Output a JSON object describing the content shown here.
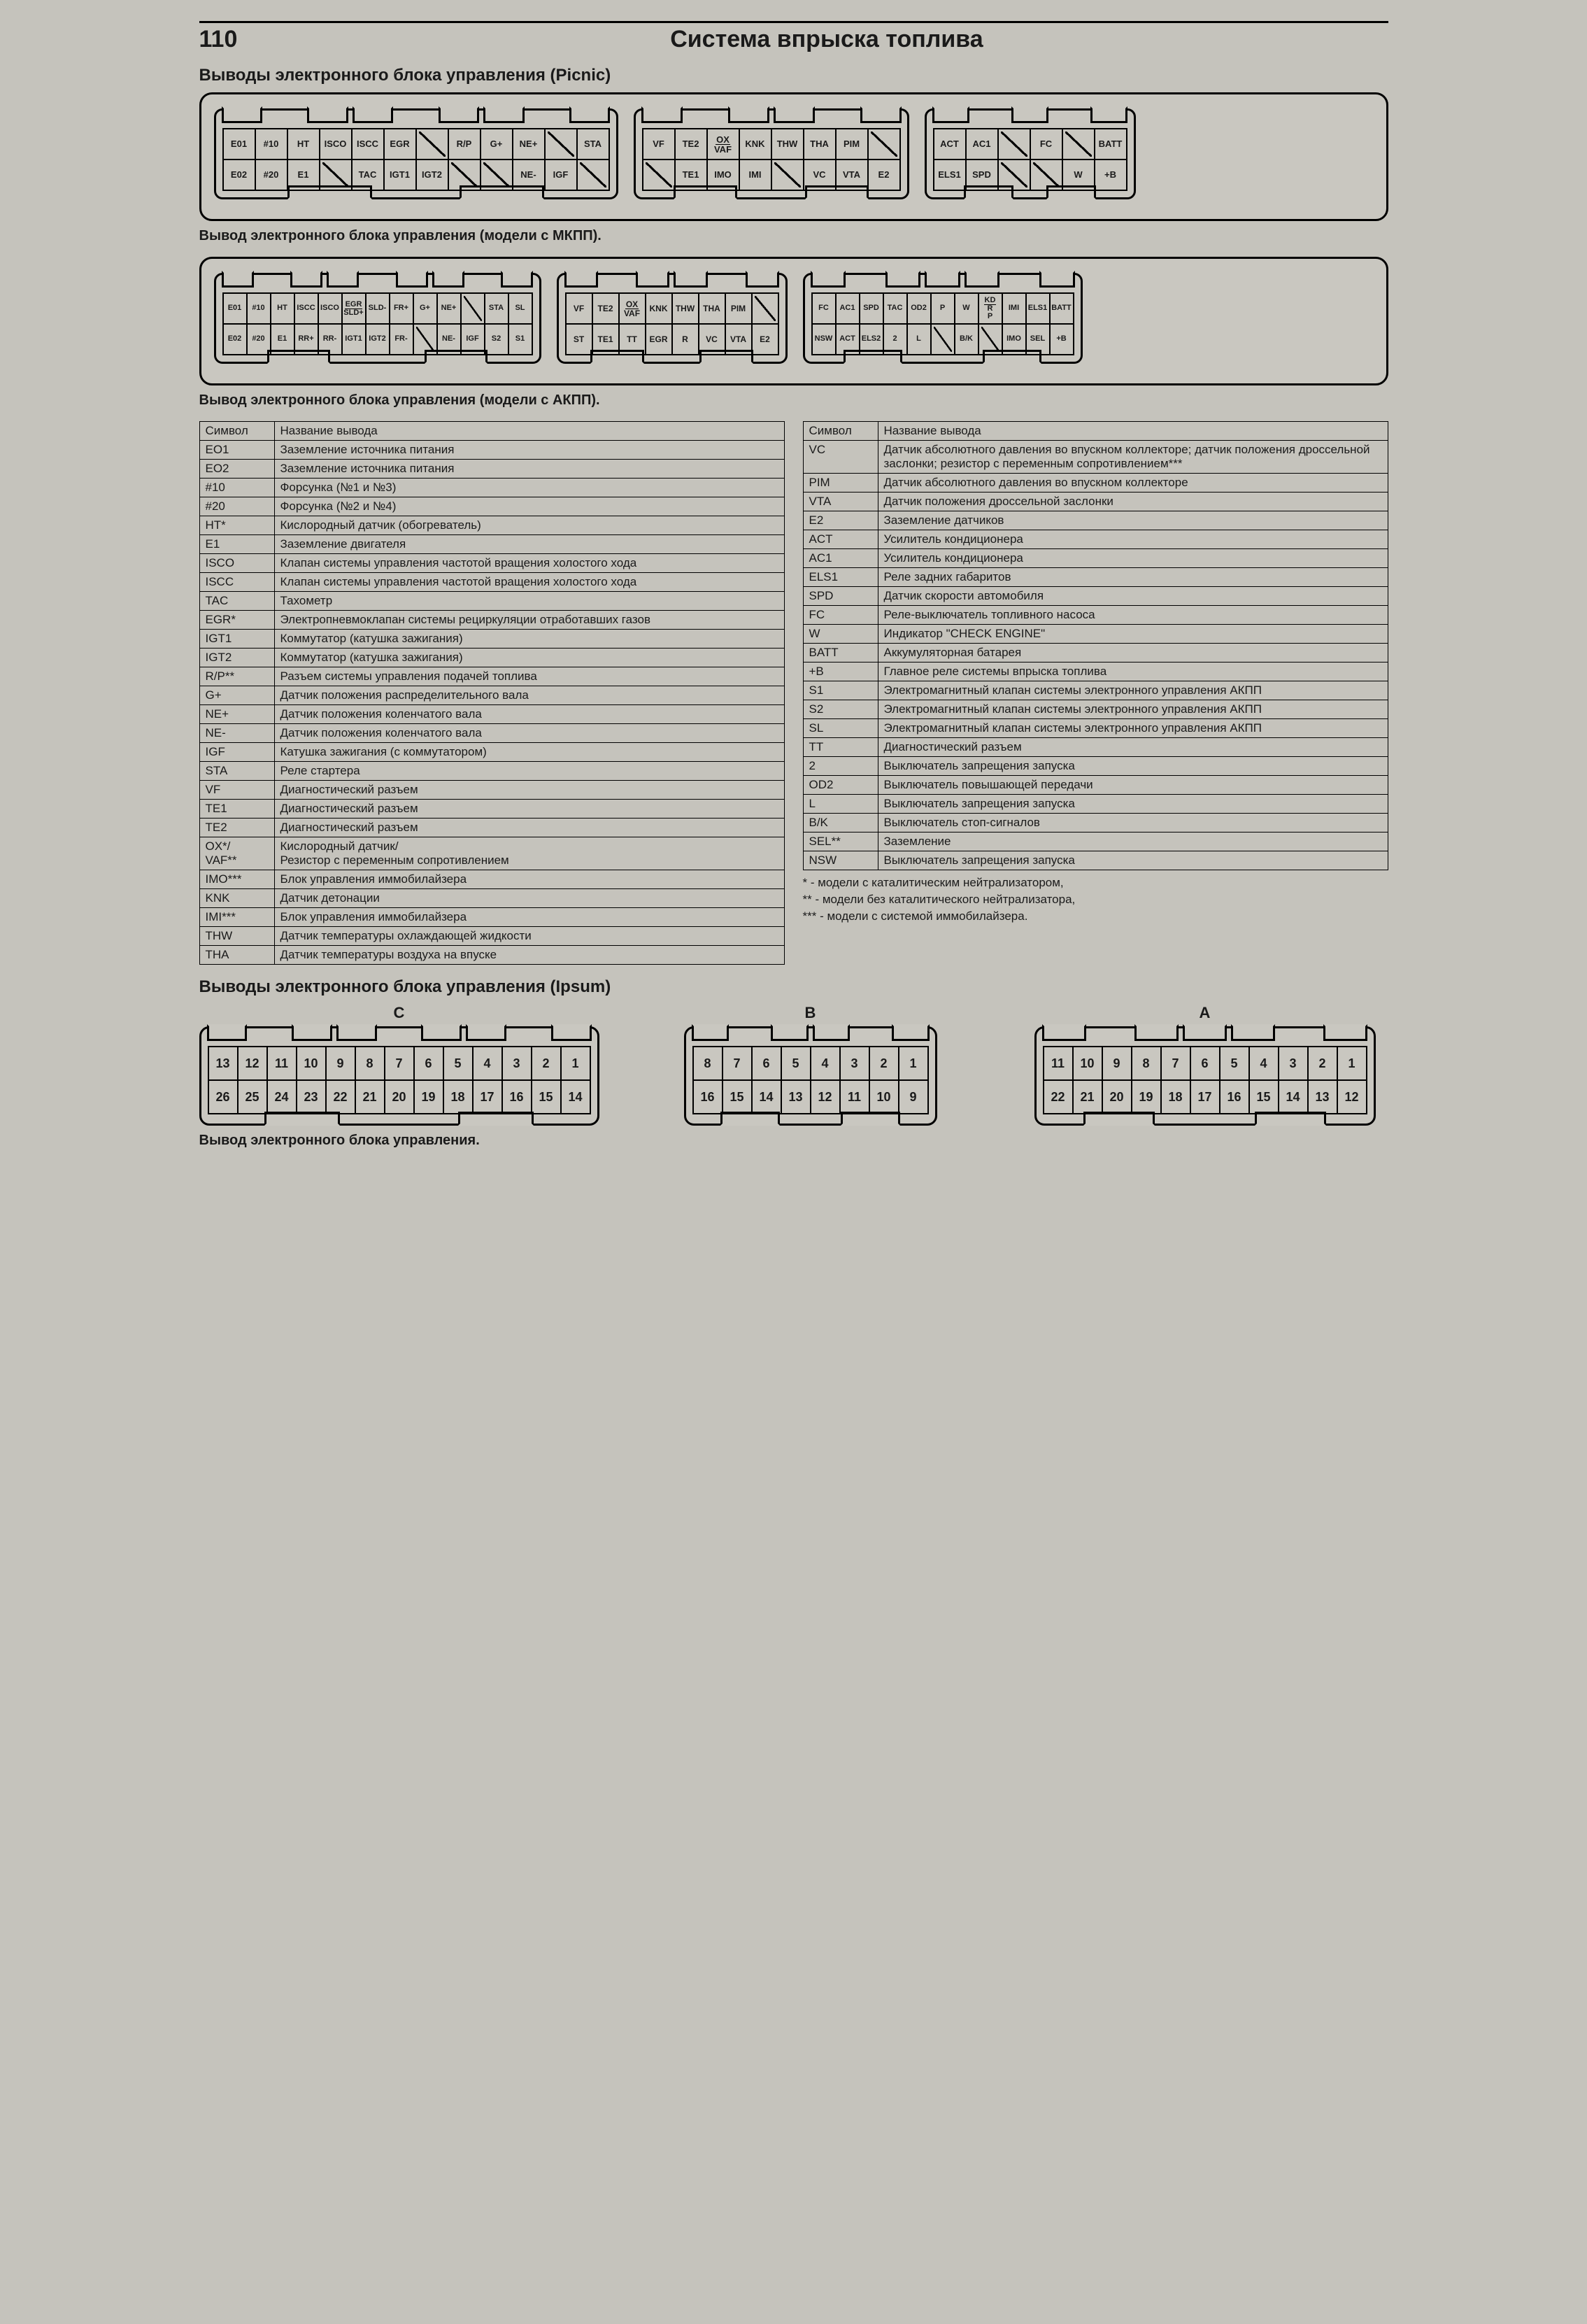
{
  "page_number": "110",
  "main_title": "Система впрыска топлива",
  "section_picnic": "Выводы электронного блока управления (Picnic)",
  "caption_mkpp": "Вывод электронного блока управления (модели с МКПП).",
  "caption_akpp": "Вывод электронного блока управления (модели с АКПП).",
  "section_ipsum": "Выводы электронного блока управления (Ipsum)",
  "caption_ipsum": "Вывод электронного блока управления.",
  "mkpp": {
    "block_a": {
      "row1": [
        "E01",
        "#10",
        "HT",
        "ISCO",
        "ISCC",
        "EGR",
        "",
        "R/P",
        "G+",
        "NE+",
        "",
        "STA"
      ],
      "row2": [
        "E02",
        "#20",
        "E1",
        "",
        "TAC",
        "IGT1",
        "IGT2",
        "",
        "",
        "NE-",
        "IGF",
        ""
      ]
    },
    "block_b": {
      "row1": [
        "VF",
        "TE2",
        "OX/VAF",
        "KNK",
        "THW",
        "THA",
        "PIM",
        ""
      ],
      "row2": [
        "",
        "TE1",
        "IMO",
        "IMI",
        "",
        "VC",
        "VTA",
        "E2"
      ]
    },
    "block_c": {
      "row1": [
        "ACT",
        "AC1",
        "",
        "FC",
        "",
        "BATT"
      ],
      "row2": [
        "ELS1",
        "SPD",
        "",
        "",
        "W",
        "+B"
      ]
    }
  },
  "akpp": {
    "block_a": {
      "row1": [
        "E01",
        "#10",
        "HT",
        "ISCC",
        "ISCO",
        "EGR/SLD+",
        "SLD-",
        "FR+",
        "G+",
        "NE+",
        "",
        "STA",
        "SL"
      ],
      "row2": [
        "E02",
        "#20",
        "E1",
        "RR+",
        "RR-",
        "IGT1",
        "IGT2",
        "FR-",
        "",
        "NE-",
        "IGF",
        "S2",
        "S1"
      ]
    },
    "block_b": {
      "row1": [
        "VF",
        "TE2",
        "OX/VAF",
        "KNK",
        "THW",
        "THA",
        "PIM",
        ""
      ],
      "row2": [
        "ST",
        "TE1",
        "TT",
        "EGR",
        "R",
        "VC",
        "VTA",
        "E2"
      ]
    },
    "block_c": {
      "row1": [
        "FC",
        "AC1",
        "SPD",
        "TAC",
        "OD2",
        "P",
        "W",
        "KD/R/P",
        "IMI",
        "ELS1",
        "BATT"
      ],
      "row2": [
        "NSW",
        "ACT",
        "ELS2",
        "2",
        "L",
        "",
        "B/K",
        "",
        "IMO",
        "SEL",
        "+B"
      ]
    }
  },
  "defs_headers": {
    "sym": "Символ",
    "name": "Название вывода"
  },
  "defs_left": [
    [
      "EO1",
      "Заземление источника питания"
    ],
    [
      "EO2",
      "Заземление источника питания"
    ],
    [
      "#10",
      "Форсунка (№1 и №3)"
    ],
    [
      "#20",
      "Форсунка (№2 и №4)"
    ],
    [
      "HT*",
      "Кислородный датчик (обогреватель)"
    ],
    [
      "E1",
      "Заземление двигателя"
    ],
    [
      "ISCO",
      "Клапан системы управления частотой вращения холостого хода"
    ],
    [
      "ISCC",
      "Клапан системы управления частотой вращения холостого хода"
    ],
    [
      "TAC",
      "Тахометр"
    ],
    [
      "EGR*",
      "Электропневмоклапан системы рециркуляции отработавших газов"
    ],
    [
      "IGT1",
      "Коммутатор (катушка зажигания)"
    ],
    [
      "IGT2",
      "Коммутатор (катушка зажигания)"
    ],
    [
      "R/P**",
      "Разъем системы управления подачей топлива"
    ],
    [
      "G+",
      "Датчик положения распределительного вала"
    ],
    [
      "NE+",
      "Датчик положения коленчатого вала"
    ],
    [
      "NE-",
      "Датчик положения коленчатого вала"
    ],
    [
      "IGF",
      "Катушка зажигания (с коммутатором)"
    ],
    [
      "STA",
      "Реле стартера"
    ],
    [
      "VF",
      "Диагностический разъем"
    ],
    [
      "TE1",
      "Диагностический разъем"
    ],
    [
      "TE2",
      "Диагностический разъем"
    ],
    [
      "OX*/\nVAF**",
      "Кислородный датчик/\nРезистор с переменным сопротивлением"
    ],
    [
      "IMO***",
      "Блок управления иммобилайзера"
    ],
    [
      "KNK",
      "Датчик детонации"
    ],
    [
      "IMI***",
      "Блок управления иммобилайзера"
    ],
    [
      "THW",
      "Датчик температуры охлаждающей жидкости"
    ],
    [
      "THA",
      "Датчик температуры воздуха на впуске"
    ]
  ],
  "defs_right": [
    [
      "VC",
      "Датчик абсолютного давления во впускном коллекторе; датчик положения дроссельной заслонки; резистор с переменным сопротивлением***"
    ],
    [
      "PIM",
      "Датчик абсолютного давления во впускном коллекторе"
    ],
    [
      "VTA",
      "Датчик положения дроссельной заслонки"
    ],
    [
      "E2",
      "Заземление датчиков"
    ],
    [
      "ACT",
      "Усилитель кондиционера"
    ],
    [
      "AC1",
      "Усилитель кондиционера"
    ],
    [
      "ELS1",
      "Реле задних габаритов"
    ],
    [
      "SPD",
      "Датчик скорости автомобиля"
    ],
    [
      "FC",
      "Реле-выключатель топливного насоса"
    ],
    [
      "W",
      "Индикатор \"CHECK ENGINE\""
    ],
    [
      "BATT",
      "Аккумуляторная батарея"
    ],
    [
      "+B",
      "Главное реле системы впрыска топлива"
    ],
    [
      "S1",
      "Электромагнитный клапан системы электронного управления АКПП"
    ],
    [
      "S2",
      "Электромагнитный клапан системы электронного управления АКПП"
    ],
    [
      "SL",
      "Электромагнитный клапан системы электронного управления АКПП"
    ],
    [
      "TT",
      "Диагностический разъем"
    ],
    [
      "2",
      "Выключатель запрещения запуска"
    ],
    [
      "OD2",
      "Выключатель повышающей передачи"
    ],
    [
      "L",
      "Выключатель запрещения запуска"
    ],
    [
      "B/K",
      "Выключатель стоп-сигналов"
    ],
    [
      "SEL**",
      "Заземление"
    ],
    [
      "NSW",
      "Выключатель запрещения запуска"
    ]
  ],
  "footnotes": [
    "* - модели с каталитическим нейтрализатором,",
    "** - модели без каталитического нейтрализатора,",
    "*** - модели с системой иммобилайзера."
  ],
  "ipsum": {
    "labels": {
      "c": "C",
      "b": "B",
      "a": "A"
    },
    "c": {
      "row1": [
        "13",
        "12",
        "11",
        "10",
        "9",
        "8",
        "7",
        "6",
        "5",
        "4",
        "3",
        "2",
        "1"
      ],
      "row2": [
        "26",
        "25",
        "24",
        "23",
        "22",
        "21",
        "20",
        "19",
        "18",
        "17",
        "16",
        "15",
        "14"
      ]
    },
    "b": {
      "row1": [
        "8",
        "7",
        "6",
        "5",
        "4",
        "3",
        "2",
        "1"
      ],
      "row2": [
        "16",
        "15",
        "14",
        "13",
        "12",
        "11",
        "10",
        "9"
      ]
    },
    "a": {
      "row1": [
        "11",
        "10",
        "9",
        "8",
        "7",
        "6",
        "5",
        "4",
        "3",
        "2",
        "1"
      ],
      "row2": [
        "22",
        "21",
        "20",
        "19",
        "18",
        "17",
        "16",
        "15",
        "14",
        "13",
        "12"
      ]
    }
  },
  "style": {
    "bg": "#c5c3bc",
    "border": "#000000",
    "text": "#1a1a1a",
    "title_fontsize": 34,
    "section_fontsize": 24,
    "table_fontsize": 17,
    "pin_fontsize": 13
  }
}
